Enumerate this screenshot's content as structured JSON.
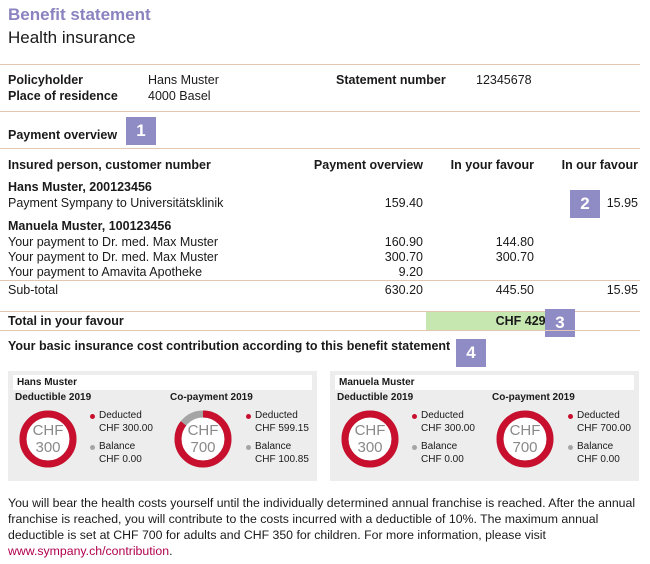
{
  "header": {
    "title": "Benefit statement",
    "subtitle": "Health insurance"
  },
  "policy": {
    "policyholder_label": "Policyholder",
    "policyholder_value": "Hans Muster",
    "residence_label": "Place of residence",
    "residence_value": "4000 Basel",
    "statement_label": "Statement number",
    "statement_value": "12345678"
  },
  "payment_overview": {
    "heading": "Payment overview",
    "badge": "1",
    "columns": {
      "insured": "Insured person, customer number",
      "payment": "Payment overview",
      "favour_you": "In your favour",
      "favour_us": "In our favour"
    },
    "persons": [
      {
        "name": "Hans Muster, 200123456",
        "rows": [
          {
            "desc": "Payment Sympany to Universitätsklinik",
            "payment": "159.40",
            "favour_you": "",
            "favour_us": "15.95"
          }
        ]
      },
      {
        "name": "Manuela Muster, 100123456",
        "rows": [
          {
            "desc": "Your payment to Dr. med. Max Muster",
            "payment": "160.90",
            "favour_you": "144.80",
            "favour_us": ""
          },
          {
            "desc": "Your payment to Dr. med. Max Muster",
            "payment": "300.70",
            "favour_you": "300.70",
            "favour_us": ""
          },
          {
            "desc": "Your payment to Amavita Apotheke",
            "payment": "9.20",
            "favour_you": "",
            "favour_us": ""
          }
        ]
      }
    ],
    "subtotal": {
      "label": "Sub-total",
      "payment": "630.20",
      "favour_you": "445.50",
      "favour_us": "15.95"
    },
    "badge2": "2",
    "total": {
      "label": "Total in your favour",
      "value": "CHF 429.55",
      "badge": "3"
    }
  },
  "contribution": {
    "heading": "Your basic insurance cost contribution according to this benefit statement",
    "badge": "4",
    "panels": [
      {
        "name": "Hans Muster",
        "deductible": {
          "title": "Deductible 2019",
          "currency": "CHF",
          "amount": "300",
          "fraction": 1.0,
          "deducted_label": "Deducted",
          "deducted_value": "CHF 300.00",
          "balance_label": "Balance",
          "balance_value": "CHF 0.00"
        },
        "copayment": {
          "title": "Co-payment 2019",
          "currency": "CHF",
          "amount": "700",
          "fraction": 0.856,
          "deducted_label": "Deducted",
          "deducted_value": "CHF 599.15",
          "balance_label": "Balance",
          "balance_value": "CHF 100.85"
        }
      },
      {
        "name": "Manuela Muster",
        "deductible": {
          "title": "Deductible 2019",
          "currency": "CHF",
          "amount": "300",
          "fraction": 1.0,
          "deducted_label": "Deducted",
          "deducted_value": "CHF 300.00",
          "balance_label": "Balance",
          "balance_value": "CHF 0.00"
        },
        "copayment": {
          "title": "Co-payment 2019",
          "currency": "CHF",
          "amount": "700",
          "fraction": 1.0,
          "deducted_label": "Deducted",
          "deducted_value": "CHF 700.00",
          "balance_label": "Balance",
          "balance_value": "CHF 0.00"
        }
      }
    ],
    "colors": {
      "deducted": "#c8102e",
      "balance": "#a5a5a5"
    }
  },
  "footer": {
    "text": "You will bear the health costs yourself until the individually determined annual franchise is reached. After the annual franchise is reached, you will contribute to the costs incurred with a deductible of 10%. The maximum annual deductible is set at CHF 700 for adults and CHF 350 for children. For more information, please visit",
    "link": "www.sympany.ch/contribution",
    "link_suffix": "."
  }
}
